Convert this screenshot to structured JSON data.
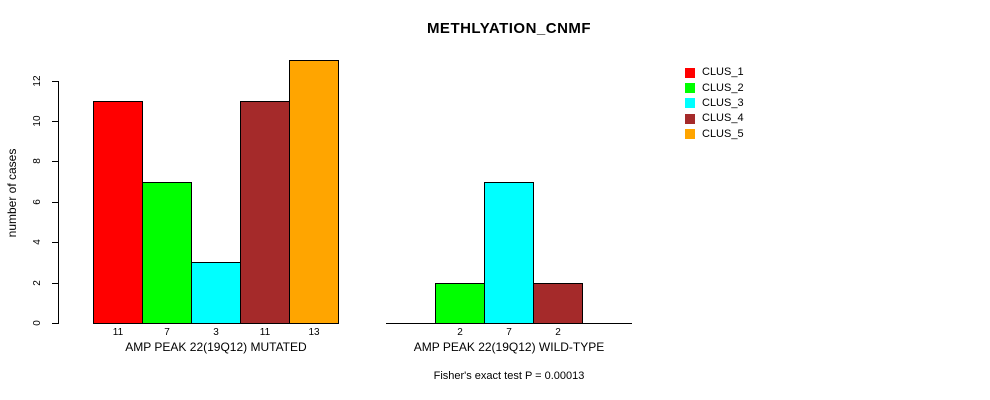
{
  "title": "METHLYATION_CNMF",
  "chart_data": {
    "type": "bar",
    "title": "METHLYATION_CNMF",
    "ylabel": "number of cases",
    "xlabel": "",
    "ylim": [
      0,
      13
    ],
    "yticks": [
      0,
      2,
      4,
      6,
      8,
      10,
      12
    ],
    "grid": false,
    "legend_position": "top-right",
    "categories": [
      "AMP PEAK 22(19Q12) MUTATED",
      "AMP PEAK 22(19Q12) WILD-TYPE"
    ],
    "series": [
      {
        "name": "CLUS_1",
        "color": "#FF0000",
        "values": [
          11,
          0
        ]
      },
      {
        "name": "CLUS_2",
        "color": "#00FF00",
        "values": [
          7,
          2
        ]
      },
      {
        "name": "CLUS_3",
        "color": "#00FFFF",
        "values": [
          3,
          7
        ]
      },
      {
        "name": "CLUS_4",
        "color": "#A52A2A",
        "values": [
          11,
          2
        ]
      },
      {
        "name": "CLUS_5",
        "color": "#FFA500",
        "values": [
          13,
          0
        ]
      }
    ],
    "bar_value_labels": [
      [
        "11",
        "7",
        "3",
        "11",
        "13"
      ],
      [
        "",
        "2",
        "7",
        "2",
        ""
      ]
    ],
    "annotation": "Fisher's exact test P = 0.00013"
  },
  "legend": {
    "items": [
      {
        "label": "CLUS_1",
        "color": "#FF0000"
      },
      {
        "label": "CLUS_2",
        "color": "#00FF00"
      },
      {
        "label": "CLUS_3",
        "color": "#00FFFF"
      },
      {
        "label": "CLUS_4",
        "color": "#A52A2A"
      },
      {
        "label": "CLUS_5",
        "color": "#FFA500"
      }
    ]
  }
}
